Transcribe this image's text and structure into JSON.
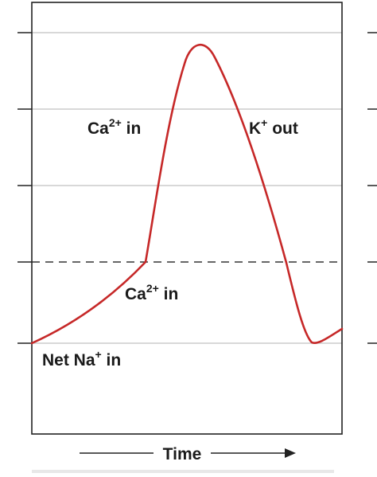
{
  "diagram": {
    "labels": {
      "ca_upper": {
        "base": "Ca",
        "sup": "2+",
        "tail": " in"
      },
      "k_out": {
        "base": "K",
        "sup": "+",
        "tail": " out"
      },
      "ca_lower": {
        "base": "Ca",
        "sup": "2+",
        "tail": " in"
      },
      "net_na": {
        "base": "Net Na",
        "sup": "+",
        "tail": " in"
      }
    },
    "x_axis_title": "Time",
    "colors": {
      "trace": "#c62828",
      "frame": "#222222",
      "gridline": "#cccccc",
      "threshold": "#333333"
    }
  }
}
